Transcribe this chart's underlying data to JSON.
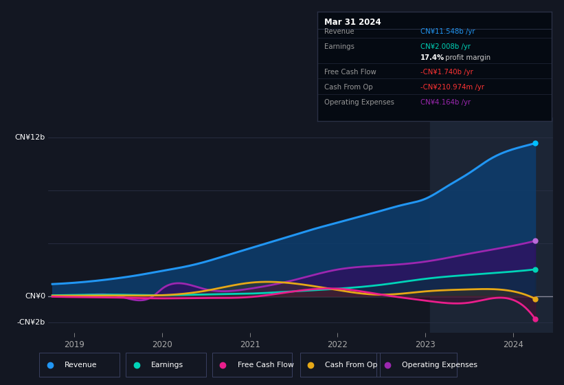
{
  "background_color": "#131722",
  "plot_bg_color": "#131722",
  "forecast_bg_color": "#1c2535",
  "grid_color": "#2a3045",
  "zero_line_color": "#888899",
  "ylim": [
    -2.8,
    13.5
  ],
  "xlim_start": 2018.7,
  "xlim_end": 2024.45,
  "forecast_start": 2023.05,
  "xticks": [
    2019,
    2020,
    2021,
    2022,
    2023,
    2024
  ],
  "series": {
    "revenue": {
      "color": "#2196f3",
      "fill_color": "#0d3d6e",
      "fill_alpha": 0.85,
      "label": "Revenue",
      "dot_color": "#00bfff",
      "x": [
        2018.75,
        2019.0,
        2019.25,
        2019.5,
        2019.75,
        2020.0,
        2020.25,
        2020.5,
        2020.75,
        2021.0,
        2021.25,
        2021.5,
        2021.75,
        2022.0,
        2022.25,
        2022.5,
        2022.75,
        2023.0,
        2023.25,
        2023.5,
        2023.75,
        2024.0,
        2024.25
      ],
      "y": [
        0.9,
        1.0,
        1.15,
        1.35,
        1.6,
        1.9,
        2.2,
        2.6,
        3.1,
        3.6,
        4.1,
        4.6,
        5.1,
        5.55,
        6.0,
        6.45,
        6.9,
        7.35,
        8.3,
        9.3,
        10.4,
        11.1,
        11.548
      ]
    },
    "earnings": {
      "color": "#00d4b8",
      "fill_color": "#003838",
      "fill_alpha": 0.5,
      "label": "Earnings",
      "dot_color": "#00d4b8",
      "x": [
        2018.75,
        2019.0,
        2019.5,
        2020.0,
        2020.5,
        2021.0,
        2021.5,
        2022.0,
        2022.5,
        2023.0,
        2023.5,
        2024.0,
        2024.25
      ],
      "y": [
        0.05,
        0.08,
        0.1,
        0.06,
        0.12,
        0.18,
        0.35,
        0.55,
        0.85,
        1.3,
        1.6,
        1.85,
        2.008
      ]
    },
    "free_cash_flow": {
      "color": "#e91e8c",
      "fill_color": "#6b0033",
      "fill_alpha": 0.3,
      "label": "Free Cash Flow",
      "dot_color": "#e91e8c",
      "x": [
        2018.75,
        2019.0,
        2019.5,
        2020.0,
        2020.5,
        2021.0,
        2021.5,
        2022.0,
        2022.5,
        2023.0,
        2023.5,
        2024.0,
        2024.25
      ],
      "y": [
        -0.05,
        -0.08,
        -0.12,
        -0.18,
        -0.15,
        -0.08,
        0.35,
        0.55,
        0.1,
        -0.35,
        -0.5,
        -0.3,
        -1.74
      ]
    },
    "cash_from_op": {
      "color": "#e6a817",
      "fill_color": "#5a3a00",
      "fill_alpha": 0.3,
      "label": "Cash From Op",
      "dot_color": "#e6a817",
      "x": [
        2018.75,
        2019.0,
        2019.5,
        2020.0,
        2020.5,
        2021.0,
        2021.5,
        2022.0,
        2022.5,
        2023.0,
        2023.5,
        2024.0,
        2024.25
      ],
      "y": [
        0.02,
        0.03,
        0.04,
        0.06,
        0.4,
        1.0,
        0.95,
        0.45,
        0.1,
        0.35,
        0.5,
        0.35,
        -0.21
      ]
    },
    "operating_expenses": {
      "color": "#9c27b0",
      "fill_color": "#3d0060",
      "fill_alpha": 0.55,
      "label": "Operating Expenses",
      "dot_color": "#bb6bd9",
      "x": [
        2018.75,
        2019.0,
        2019.5,
        2019.9,
        2020.0,
        2020.5,
        2021.0,
        2021.5,
        2022.0,
        2022.5,
        2023.0,
        2023.5,
        2024.0,
        2024.25
      ],
      "y": [
        0.0,
        0.0,
        0.0,
        0.0,
        0.55,
        0.5,
        0.55,
        1.2,
        2.0,
        2.3,
        2.6,
        3.2,
        3.8,
        4.164
      ]
    }
  },
  "tooltip": {
    "title": "Mar 31 2024",
    "bg_color": "#050a12",
    "border_color": "#2a3045",
    "rows": [
      {
        "label": "Revenue",
        "value": "CN¥11.548b /yr",
        "value_color": "#2196f3",
        "sep_above": true
      },
      {
        "label": "Earnings",
        "value": "CN¥2.008b /yr",
        "value_color": "#00d4b8",
        "sep_above": true
      },
      {
        "label": "",
        "value": "17.4% profit margin",
        "value_color": "#cccccc",
        "bold_val": "17.4%",
        "sep_above": false
      },
      {
        "label": "Free Cash Flow",
        "value": "-CN¥1.740b /yr",
        "value_color": "#ff3333",
        "sep_above": true
      },
      {
        "label": "Cash From Op",
        "value": "-CN¥210.974m /yr",
        "value_color": "#ff3333",
        "sep_above": true
      },
      {
        "label": "Operating Expenses",
        "value": "CN¥4.164b /yr",
        "value_color": "#9c27b0",
        "sep_above": true
      }
    ]
  },
  "legend_items": [
    {
      "label": "Revenue",
      "color": "#2196f3"
    },
    {
      "label": "Earnings",
      "color": "#00d4b8"
    },
    {
      "label": "Free Cash Flow",
      "color": "#e91e8c"
    },
    {
      "label": "Cash From Op",
      "color": "#e6a817"
    },
    {
      "label": "Operating Expenses",
      "color": "#9c27b0"
    }
  ]
}
